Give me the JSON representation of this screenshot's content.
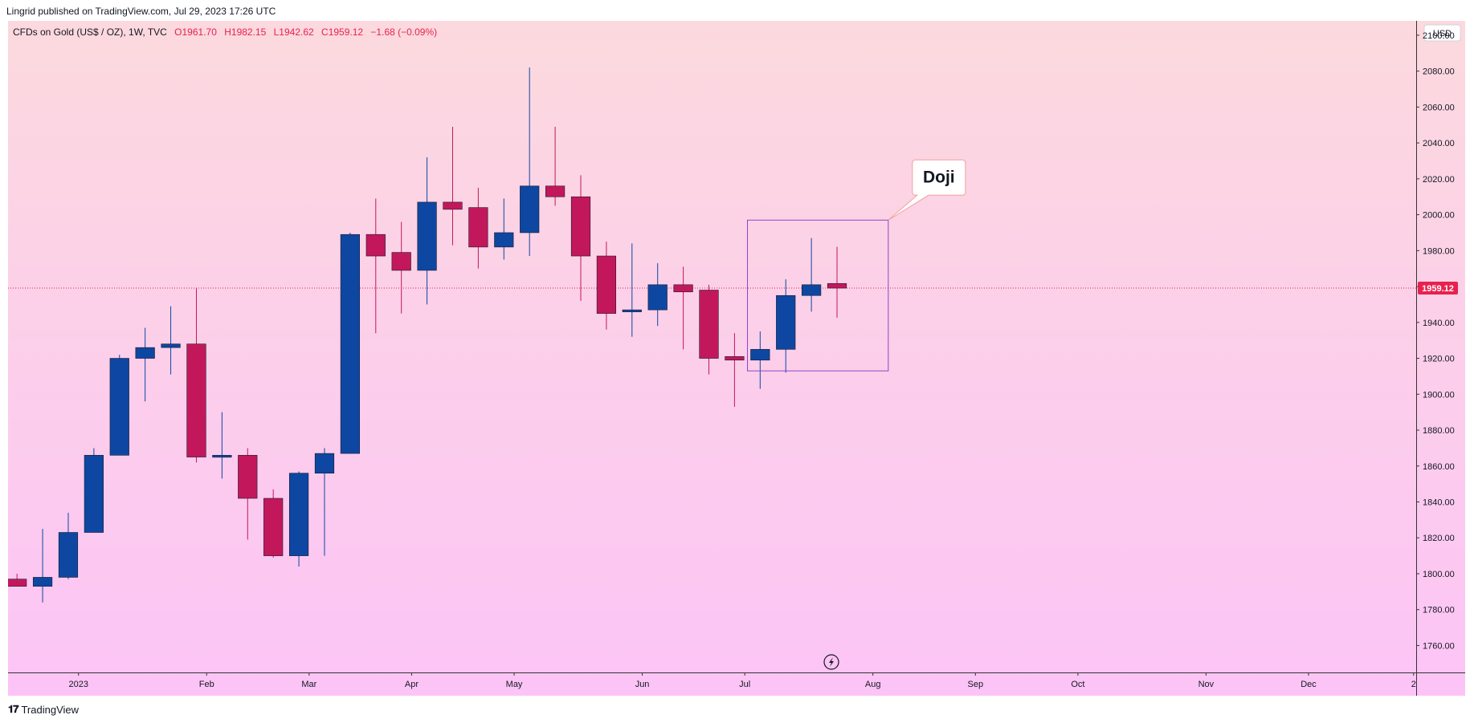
{
  "header": {
    "published": "Lingrid published on TradingView.com, Jul 29, 2023 17:26 UTC"
  },
  "legend": {
    "symbol": "CFDs on Gold (US$ / OZ), 1W, TVC",
    "open": "O1961.70",
    "high": "H1982.15",
    "low": "L1942.62",
    "close": "C1959.12",
    "change": "−1.68 (−0.09%)"
  },
  "currency": "USD",
  "footer": {
    "brand": "TradingView",
    "logo_icon": "tradingview-logo-icon"
  },
  "colors": {
    "up": "#0d47a1",
    "down": "#c2185b",
    "bg_top": "#fcd9de",
    "bg_bottom": "#fcc4f6",
    "annotation": "#8e44cc",
    "last_price": "#e8214e"
  },
  "annotation": {
    "label": "Doji"
  },
  "last_price_label": "1959.12",
  "chart_data": {
    "type": "candlestick",
    "title": "CFDs on Gold (US$ / OZ), 1W, TVC",
    "y_axis": {
      "min": 1745,
      "max": 2108,
      "ticks": [
        1760,
        1780,
        1800,
        1820,
        1840,
        1860,
        1880,
        1900,
        1920,
        1940,
        1960,
        1980,
        2000,
        2020,
        2040,
        2060,
        2080,
        2100
      ],
      "tick_labels": [
        "1760.00",
        "1780.00",
        "1800.00",
        "1820.00",
        "1840.00",
        "1860.00",
        "1880.00",
        "1900.00",
        "1920.00",
        "1940.00",
        "1960.00",
        "1980.00",
        "2000.00",
        "2020.00",
        "2040.00",
        "2060.00",
        "2080.00",
        "2100.00"
      ],
      "side": "right"
    },
    "x_axis": {
      "labels": [
        "2023",
        "Feb",
        "Mar",
        "Apr",
        "May",
        "Jun",
        "Jul",
        "Aug",
        "Sep",
        "Oct",
        "Nov",
        "Dec",
        "2"
      ],
      "label_week_index": [
        2.4,
        7.4,
        11.4,
        15.4,
        19.4,
        24.4,
        28.4,
        33.4,
        37.4,
        41.4,
        46.4,
        50.4,
        54.5
      ]
    },
    "week_range": [
      -0.35,
      54.6
    ],
    "last_price": 1959.12,
    "grid": false,
    "candles": [
      {
        "o": 1797,
        "h": 1800,
        "l": 1793,
        "c": 1793
      },
      {
        "o": 1793,
        "h": 1825,
        "l": 1784,
        "c": 1798
      },
      {
        "o": 1798,
        "h": 1834,
        "l": 1797,
        "c": 1823
      },
      {
        "o": 1823,
        "h": 1870,
        "l": 1823,
        "c": 1866
      },
      {
        "o": 1866,
        "h": 1922,
        "l": 1866,
        "c": 1920
      },
      {
        "o": 1920,
        "h": 1937,
        "l": 1896,
        "c": 1926
      },
      {
        "o": 1926,
        "h": 1949,
        "l": 1911,
        "c": 1928
      },
      {
        "o": 1928,
        "h": 1959,
        "l": 1862,
        "c": 1865
      },
      {
        "o": 1865,
        "h": 1890,
        "l": 1853,
        "c": 1866
      },
      {
        "o": 1866,
        "h": 1870,
        "l": 1819,
        "c": 1842
      },
      {
        "o": 1842,
        "h": 1847,
        "l": 1809,
        "c": 1810
      },
      {
        "o": 1810,
        "h": 1857,
        "l": 1804,
        "c": 1856
      },
      {
        "o": 1856,
        "h": 1870,
        "l": 1810,
        "c": 1867
      },
      {
        "o": 1867,
        "h": 1990,
        "l": 1867,
        "c": 1989
      },
      {
        "o": 1989,
        "h": 2009,
        "l": 1934,
        "c": 1977
      },
      {
        "o": 1979,
        "h": 1996,
        "l": 1945,
        "c": 1969
      },
      {
        "o": 1969,
        "h": 2032,
        "l": 1950,
        "c": 2007
      },
      {
        "o": 2007,
        "h": 2049,
        "l": 1983,
        "c": 2003
      },
      {
        "o": 2004,
        "h": 2015,
        "l": 1970,
        "c": 1982
      },
      {
        "o": 1982,
        "h": 2009,
        "l": 1975,
        "c": 1990
      },
      {
        "o": 1990,
        "h": 2082,
        "l": 1977,
        "c": 2016
      },
      {
        "o": 2016,
        "h": 2049,
        "l": 2005,
        "c": 2010
      },
      {
        "o": 2010,
        "h": 2022,
        "l": 1952,
        "c": 1977
      },
      {
        "o": 1977,
        "h": 1985,
        "l": 1936,
        "c": 1945
      },
      {
        "o": 1946,
        "h": 1984,
        "l": 1932,
        "c": 1947
      },
      {
        "o": 1947,
        "h": 1973,
        "l": 1938,
        "c": 1961
      },
      {
        "o": 1961,
        "h": 1971,
        "l": 1925,
        "c": 1957
      },
      {
        "o": 1958,
        "h": 1961,
        "l": 1911,
        "c": 1920
      },
      {
        "o": 1921,
        "h": 1934,
        "l": 1893,
        "c": 1919
      },
      {
        "o": 1919,
        "h": 1935,
        "l": 1903,
        "c": 1925
      },
      {
        "o": 1925,
        "h": 1964,
        "l": 1912,
        "c": 1955
      },
      {
        "o": 1955,
        "h": 1987,
        "l": 1946,
        "c": 1961
      },
      {
        "o": 1961.7,
        "h": 1982.15,
        "l": 1942.62,
        "c": 1959.12
      }
    ]
  }
}
